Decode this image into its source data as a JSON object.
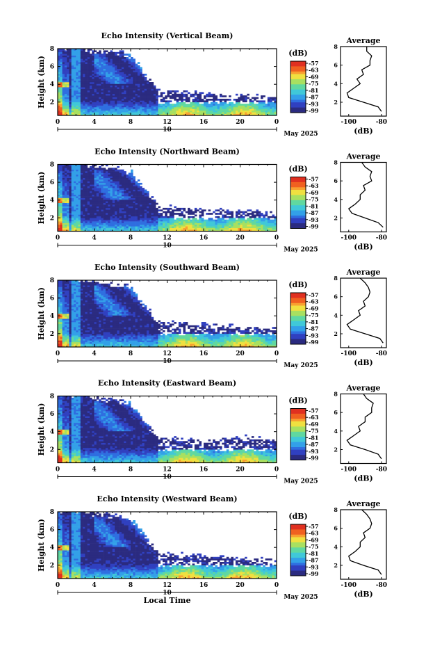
{
  "figure": {
    "x_axis_title": "Local Time",
    "date_label": "May 2025",
    "day_label": "10"
  },
  "chart_data": [
    {
      "type": "heatmap",
      "title": "Echo Intensity (Vertical Beam)",
      "xlabel": "",
      "ylabel": "Height (km)",
      "x_ticks": [
        "0",
        "4",
        "8",
        "12",
        "16",
        "20",
        "0"
      ],
      "y_ticks": [
        "2",
        "4",
        "6",
        "8"
      ],
      "xlim": [
        0,
        24
      ],
      "ylim": [
        0.5,
        8
      ],
      "colorbar": {
        "unit": "(dB)",
        "ticks": [
          "-57",
          "-63",
          "-69",
          "-75",
          "-81",
          "-87",
          "-93",
          "-99"
        ]
      },
      "profile": {
        "title": "Average",
        "xlabel": "(dB)",
        "x_ticks": [
          "-100",
          "-80"
        ],
        "y_ticks": [
          "2",
          "4",
          "6",
          "8"
        ],
        "xlim": [
          -105,
          -77
        ],
        "heights": [
          1.0,
          1.5,
          2.0,
          2.5,
          3.0,
          3.5,
          4.0,
          4.5,
          5.0,
          5.5,
          6.0,
          6.5,
          7.0,
          7.5,
          8.0
        ],
        "values": [
          -80,
          -82,
          -91,
          -100,
          -101,
          -97,
          -93,
          -95,
          -91,
          -92,
          -87,
          -87,
          -86,
          -89,
          -89
        ]
      }
    },
    {
      "type": "heatmap",
      "title": "Echo Intensity (Northward Beam)",
      "xlabel": "",
      "ylabel": "Height (km)",
      "x_ticks": [
        "0",
        "4",
        "8",
        "12",
        "16",
        "20",
        "0"
      ],
      "y_ticks": [
        "2",
        "4",
        "6",
        "8"
      ],
      "xlim": [
        0,
        24
      ],
      "ylim": [
        0.5,
        8
      ],
      "colorbar": {
        "unit": "(dB)",
        "ticks": [
          "-57",
          "-63",
          "-69",
          "-75",
          "-81",
          "-87",
          "-93",
          "-99"
        ]
      },
      "profile": {
        "title": "Average",
        "xlabel": "(dB)",
        "x_ticks": [
          "-100",
          "-80"
        ],
        "y_ticks": [
          "2",
          "4",
          "6",
          "8"
        ],
        "xlim": [
          -105,
          -77
        ],
        "heights": [
          1.0,
          1.5,
          2.0,
          2.5,
          3.0,
          3.5,
          4.0,
          4.5,
          5.0,
          5.5,
          6.0,
          6.5,
          7.0,
          7.5,
          8.0
        ],
        "values": [
          -79,
          -82,
          -90,
          -98,
          -100,
          -96,
          -93,
          -93,
          -90,
          -91,
          -86,
          -87,
          -86,
          -90,
          -92
        ]
      }
    },
    {
      "type": "heatmap",
      "title": "Echo Intensity (Southward Beam)",
      "xlabel": "",
      "ylabel": "Height (km)",
      "x_ticks": [
        "0",
        "4",
        "8",
        "12",
        "16",
        "20",
        "0"
      ],
      "y_ticks": [
        "2",
        "4",
        "6",
        "8"
      ],
      "xlim": [
        0,
        24
      ],
      "ylim": [
        0.5,
        8
      ],
      "colorbar": {
        "unit": "(dB)",
        "ticks": [
          "-57",
          "-63",
          "-69",
          "-75",
          "-81",
          "-87",
          "-93",
          "-99"
        ]
      },
      "profile": {
        "title": "Average",
        "xlabel": "(dB)",
        "x_ticks": [
          "-100",
          "-80"
        ],
        "y_ticks": [
          "2",
          "4",
          "6",
          "8"
        ],
        "xlim": [
          -105,
          -77
        ],
        "heights": [
          1.0,
          1.5,
          2.0,
          2.5,
          3.0,
          3.5,
          4.0,
          4.5,
          5.0,
          5.5,
          6.0,
          6.5,
          7.0,
          7.5,
          8.0
        ],
        "values": [
          -79,
          -81,
          -90,
          -99,
          -101,
          -97,
          -93,
          -94,
          -90,
          -91,
          -88,
          -87,
          -88,
          -90,
          -93
        ]
      }
    },
    {
      "type": "heatmap",
      "title": "Echo Intensity (Eastward Beam)",
      "xlabel": "",
      "ylabel": "Height (km)",
      "x_ticks": [
        "0",
        "4",
        "8",
        "12",
        "16",
        "20",
        "0"
      ],
      "y_ticks": [
        "2",
        "4",
        "6",
        "8"
      ],
      "xlim": [
        0,
        24
      ],
      "ylim": [
        0.5,
        8
      ],
      "colorbar": {
        "unit": "(dB)",
        "ticks": [
          "-57",
          "-63",
          "-69",
          "-75",
          "-81",
          "-87",
          "-93",
          "-99"
        ]
      },
      "profile": {
        "title": "Average",
        "xlabel": "(dB)",
        "x_ticks": [
          "-100",
          "-80"
        ],
        "y_ticks": [
          "2",
          "4",
          "6",
          "8"
        ],
        "xlim": [
          -105,
          -77
        ],
        "heights": [
          1.0,
          1.5,
          2.0,
          2.5,
          3.0,
          3.5,
          4.0,
          4.5,
          5.0,
          5.5,
          6.0,
          6.5,
          7.0,
          7.5,
          8.0
        ],
        "values": [
          -80,
          -82,
          -90,
          -99,
          -101,
          -97,
          -93,
          -94,
          -90,
          -90,
          -86,
          -86,
          -85,
          -89,
          -91
        ]
      }
    },
    {
      "type": "heatmap",
      "title": "Echo Intensity (Westward Beam)",
      "xlabel": "Local Time",
      "ylabel": "Height (km)",
      "x_ticks": [
        "0",
        "4",
        "8",
        "12",
        "16",
        "20",
        "0"
      ],
      "y_ticks": [
        "2",
        "4",
        "6",
        "8"
      ],
      "xlim": [
        0,
        24
      ],
      "ylim": [
        0.5,
        8
      ],
      "colorbar": {
        "unit": "(dB)",
        "ticks": [
          "-57",
          "-63",
          "-69",
          "-75",
          "-81",
          "-87",
          "-93",
          "-99"
        ]
      },
      "profile": {
        "title": "Average",
        "xlabel": "(dB)",
        "x_ticks": [
          "-100",
          "-80"
        ],
        "y_ticks": [
          "2",
          "4",
          "6",
          "8"
        ],
        "xlim": [
          -105,
          -77
        ],
        "heights": [
          1.0,
          1.5,
          2.0,
          2.5,
          3.0,
          3.5,
          4.0,
          4.5,
          5.0,
          5.5,
          6.0,
          6.5,
          7.0,
          7.5,
          8.0
        ],
        "values": [
          -80,
          -82,
          -91,
          -99,
          -100,
          -96,
          -93,
          -93,
          -90,
          -91,
          -87,
          -86,
          -87,
          -89,
          -92
        ]
      }
    }
  ],
  "colors": {
    "colormap": [
      "#2b2b80",
      "#3040c0",
      "#2f6ee0",
      "#33a0e8",
      "#40c8d8",
      "#60d8a0",
      "#a8e060",
      "#f0e040",
      "#f8a030",
      "#f06020",
      "#e03020"
    ]
  }
}
